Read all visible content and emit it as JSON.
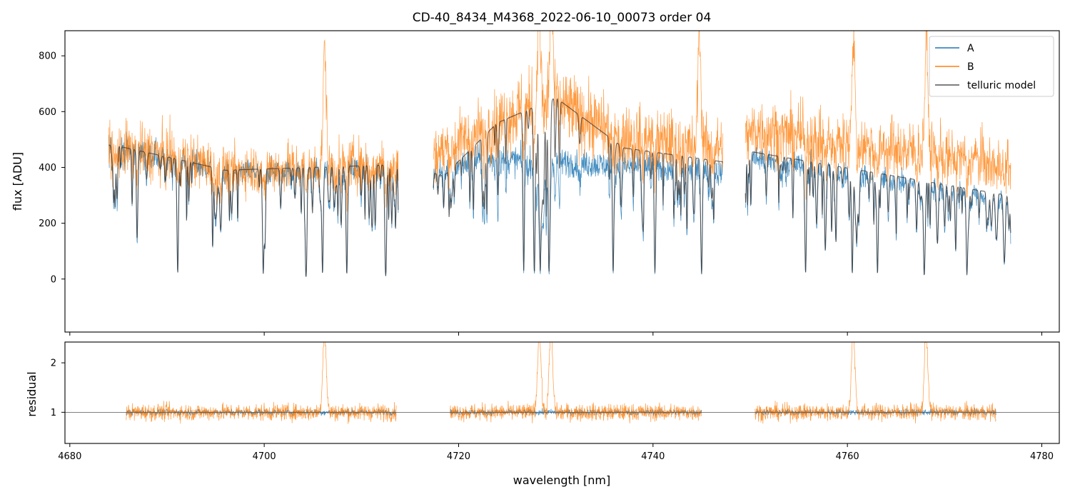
{
  "chart_data": [
    {
      "panel": "top",
      "type": "line",
      "title": "CD-40_8434_M4368_2022-06-10_00073  order 04",
      "xlabel": "",
      "ylabel": "flux [ADU]",
      "xlim": [
        4679.5,
        4781.8
      ],
      "ylim": [
        -190,
        890
      ],
      "yticks": [
        0,
        200,
        400,
        600,
        800
      ],
      "yticklabels": [
        "0",
        "200",
        "400",
        "600",
        "800"
      ],
      "xticks": [
        4680,
        4700,
        4720,
        4740,
        4760,
        4780
      ],
      "legend": "top-right",
      "grid": false,
      "segments": [
        [
          4684.0,
          4713.8
        ],
        [
          4717.4,
          4747.2
        ],
        [
          4749.5,
          4776.8
        ]
      ],
      "series": [
        {
          "name": "A",
          "color": "#1f77b4",
          "level": [
            [
              4684.0,
              470
            ],
            [
              4691.0,
              430
            ],
            [
              4696.0,
              380
            ],
            [
              4713.8,
              400
            ],
            [
              4717.4,
              380
            ],
            [
              4722.0,
              430
            ],
            [
              4730.0,
              420
            ],
            [
              4747.2,
              380
            ],
            [
              4749.5,
              440
            ],
            [
              4776.8,
              280
            ]
          ],
          "deep_lines": [
            4691.1,
            4699.9,
            4704.3,
            4706.0,
            4708.5,
            4712.5,
            4726.7,
            4727.8,
            4728.4,
            4729.3,
            4735.9,
            4740.2,
            4745.0,
            4755.7,
            4760.5,
            4763.1,
            4767.9,
            4772.3
          ]
        },
        {
          "name": "B",
          "color": "#ff7f0e",
          "level": [
            [
              4684.0,
              470
            ],
            [
              4691.0,
              440
            ],
            [
              4696.0,
              390
            ],
            [
              4713.8,
              420
            ],
            [
              4717.4,
              450
            ],
            [
              4724.0,
              560
            ],
            [
              4729.0,
              650
            ],
            [
              4736.0,
              520
            ],
            [
              4747.2,
              470
            ],
            [
              4749.5,
              540
            ],
            [
              4776.8,
              420
            ]
          ],
          "spikes": [
            4706.2,
            4728.3,
            4729.5,
            4744.8,
            4760.6,
            4768.1
          ]
        },
        {
          "name": "telluric model",
          "color": "#333333",
          "level": [
            [
              4684.5,
              480
            ],
            [
              4691.0,
              430
            ],
            [
              4696.0,
              390
            ],
            [
              4713.8,
              410
            ],
            [
              4718.5,
              370
            ],
            [
              4724.0,
              560
            ],
            [
              4730.0,
              650
            ],
            [
              4737.0,
              470
            ],
            [
              4747.2,
              420
            ],
            [
              4749.5,
              460
            ],
            [
              4776.5,
              300
            ]
          ]
        }
      ]
    },
    {
      "panel": "bottom",
      "type": "line",
      "title": "",
      "xlabel": "wavelength [nm]",
      "ylabel": "residual",
      "xlim": [
        4679.5,
        4781.8
      ],
      "ylim": [
        0.37,
        2.42
      ],
      "yticks": [
        1,
        2
      ],
      "yticklabels": [
        "1",
        "2"
      ],
      "xticks": [
        4680,
        4700,
        4720,
        4740,
        4760,
        4780
      ],
      "xticklabels": [
        "4680",
        "4700",
        "4720",
        "4740",
        "4760",
        "4780"
      ],
      "reference_line": 1,
      "grid": false,
      "segments": [
        [
          4685.8,
          4713.6
        ],
        [
          4719.1,
          4745.0
        ],
        [
          4750.5,
          4775.3
        ]
      ],
      "series": [
        {
          "name": "A",
          "color": "#1f77b4",
          "level": 1.0,
          "spread": 0.06
        },
        {
          "name": "B",
          "color": "#ff7f0e",
          "level": 1.0,
          "spread": 0.17,
          "spikes": [
            4706.2,
            4728.3,
            4729.5,
            4760.6,
            4768.1
          ]
        }
      ]
    }
  ]
}
